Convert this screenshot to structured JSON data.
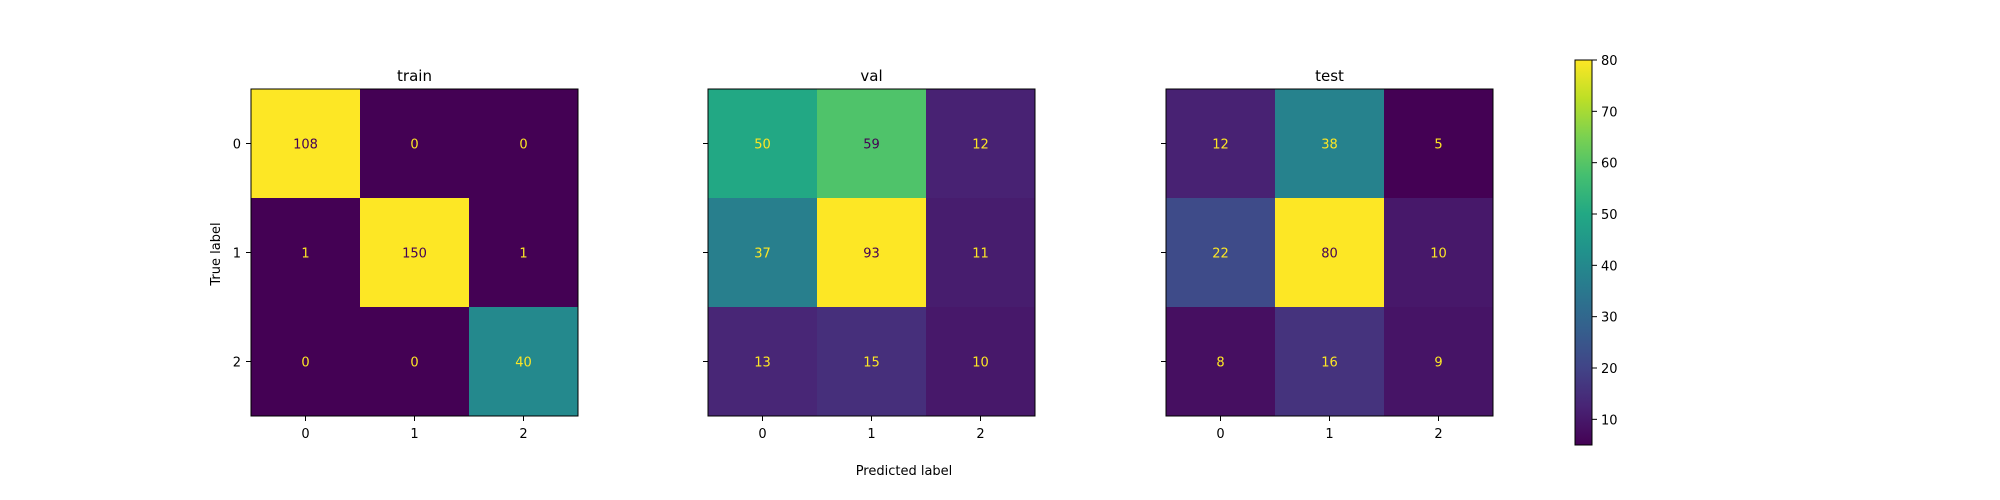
{
  "figure": {
    "xlabel": "Predicted label",
    "ylabel": "True label"
  },
  "chart_data": [
    {
      "type": "heatmap",
      "title": "train",
      "x_tick_labels": [
        "0",
        "1",
        "2"
      ],
      "y_tick_labels": [
        "0",
        "1",
        "2"
      ],
      "matrix": [
        [
          108,
          0,
          0
        ],
        [
          1,
          150,
          1
        ],
        [
          0,
          0,
          40
        ]
      ],
      "color_scale": "viridis",
      "clim": [
        5,
        80
      ]
    },
    {
      "type": "heatmap",
      "title": "val",
      "x_tick_labels": [
        "0",
        "1",
        "2"
      ],
      "y_tick_labels": [
        "0",
        "1",
        "2"
      ],
      "matrix": [
        [
          50,
          59,
          12
        ],
        [
          37,
          93,
          11
        ],
        [
          13,
          15,
          10
        ]
      ],
      "color_scale": "viridis",
      "clim": [
        5,
        80
      ]
    },
    {
      "type": "heatmap",
      "title": "test",
      "x_tick_labels": [
        "0",
        "1",
        "2"
      ],
      "y_tick_labels": [
        "0",
        "1",
        "2"
      ],
      "matrix": [
        [
          12,
          38,
          5
        ],
        [
          22,
          80,
          10
        ],
        [
          8,
          16,
          9
        ]
      ],
      "color_scale": "viridis",
      "clim": [
        5,
        80
      ]
    }
  ],
  "colorbar": {
    "range": [
      5,
      80
    ],
    "ticks": [
      10,
      20,
      30,
      40,
      50,
      60,
      70,
      80
    ],
    "tick_labels": [
      "10",
      "20",
      "30",
      "40",
      "50",
      "60",
      "70",
      "80"
    ]
  },
  "colors": {
    "annotation_light": "#fde725",
    "annotation_dark": "#440154"
  }
}
